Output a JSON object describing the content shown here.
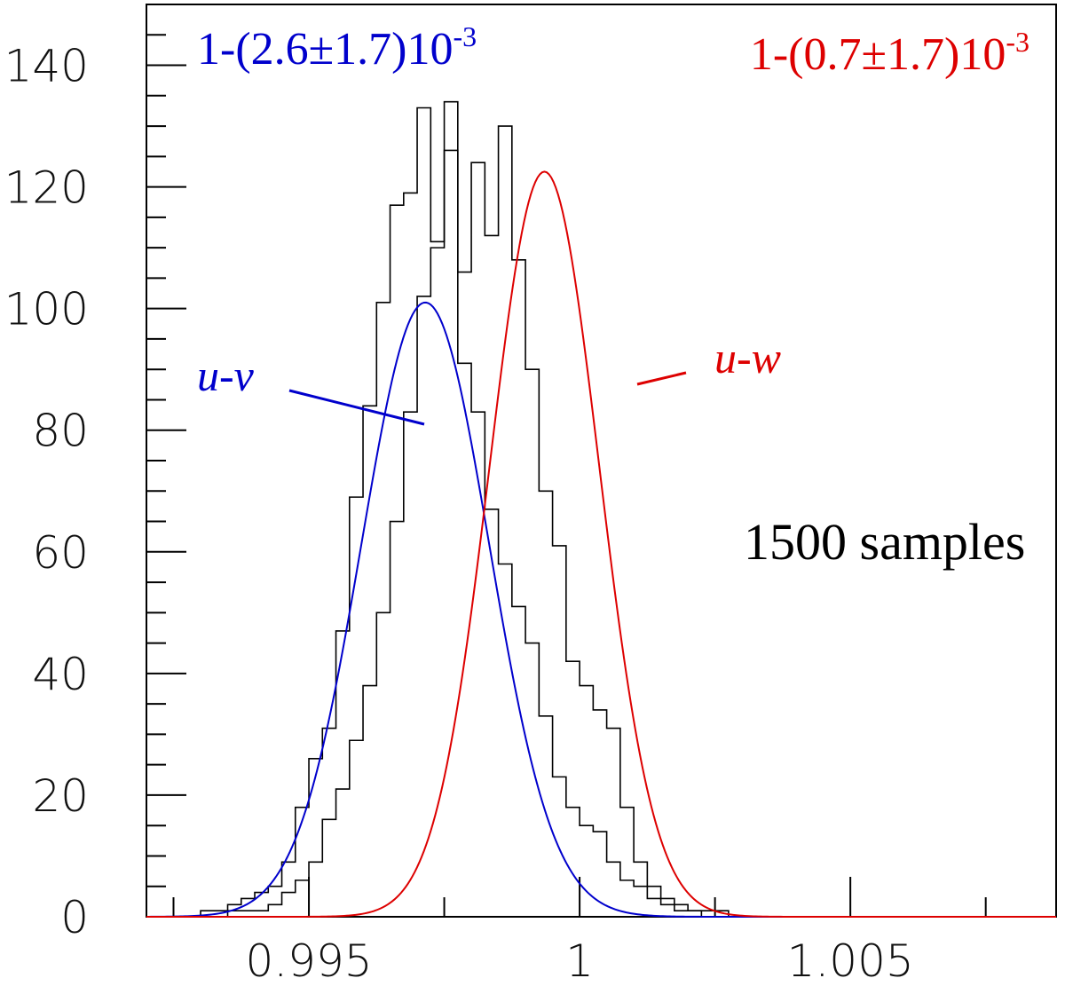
{
  "chart_data": {
    "type": "histogram",
    "title": "",
    "xlabel": "",
    "ylabel": "",
    "xlim": [
      0.992,
      1.0088
    ],
    "ylim": [
      0,
      150
    ],
    "x_ticks": [
      {
        "value": 0.995,
        "label": "0.995"
      },
      {
        "value": 1.0,
        "label": "1"
      },
      {
        "value": 1.005,
        "label": "1.005"
      }
    ],
    "y_ticks": [
      {
        "value": 0,
        "label": "0"
      },
      {
        "value": 20,
        "label": "20"
      },
      {
        "value": 40,
        "label": "40"
      },
      {
        "value": 60,
        "label": "60"
      },
      {
        "value": 80,
        "label": "80"
      },
      {
        "value": 100,
        "label": "100"
      },
      {
        "value": 120,
        "label": "120"
      },
      {
        "value": 140,
        "label": "140"
      }
    ],
    "bin_width": 0.00025,
    "series": [
      {
        "name": "u-v histogram",
        "color": "#000000",
        "bin_start": 0.993,
        "values": [
          1,
          1,
          2,
          3,
          4,
          5,
          9,
          18,
          26,
          31,
          47,
          69,
          84,
          101,
          117,
          119,
          133,
          111,
          134,
          91,
          83,
          67,
          58,
          51,
          45,
          33,
          23,
          18,
          15,
          14,
          9,
          6,
          5,
          3,
          2,
          1,
          1
        ]
      },
      {
        "name": "u-w histogram",
        "color": "#000000",
        "bin_start": 0.9935,
        "values": [
          1,
          1,
          1,
          2,
          4,
          6,
          9,
          16,
          21,
          29,
          38,
          50,
          65,
          83,
          102,
          110,
          126,
          106,
          124,
          112,
          130,
          108,
          90,
          70,
          61,
          42,
          38,
          34,
          31,
          18,
          9,
          5,
          3,
          2,
          1,
          1,
          1
        ]
      }
    ],
    "fits": [
      {
        "name": "u-v",
        "color": "#0000cc",
        "mean": 0.99715,
        "sigma": 0.00118,
        "amplitude": 101
      },
      {
        "name": "u-w",
        "color": "#dd0000",
        "mean": 0.99935,
        "sigma": 0.00101,
        "amplitude": 122.5
      }
    ],
    "annotations": {
      "blue_result": {
        "base": "1-(2.6±1.7)10",
        "exp": "-3"
      },
      "red_result": {
        "base": "1-(0.7±1.7)10",
        "exp": "-3"
      },
      "blue_label": "u-v",
      "red_label": "u-w",
      "samples": "1500 samples"
    }
  }
}
